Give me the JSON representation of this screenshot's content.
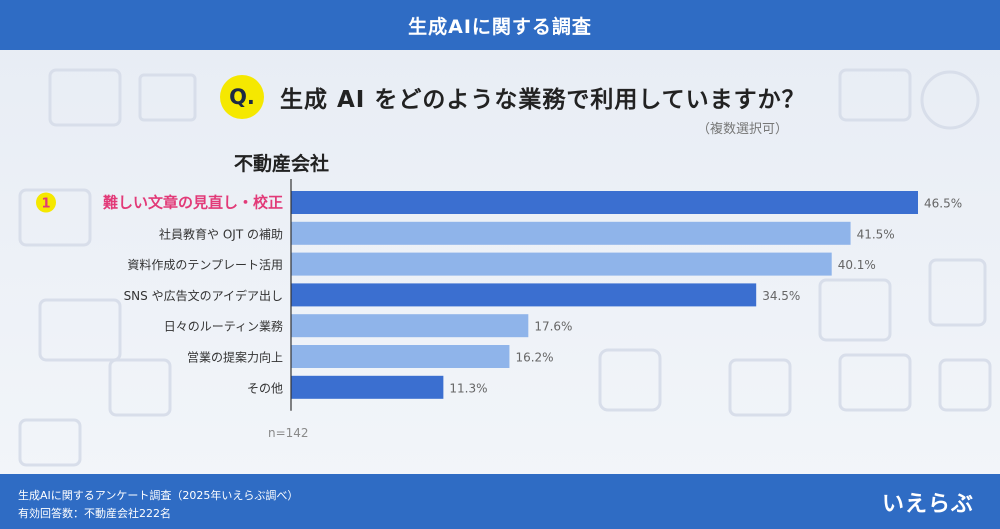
{
  "header": {
    "title": "生成AIに関する調査"
  },
  "question": {
    "badge": "Q.",
    "text": "生成 AI をどのような業務で利用していますか？",
    "note": "（複数選択可）"
  },
  "industry_label": "不動産会社",
  "sample_size": "n=142",
  "footer": {
    "line1": "生成AIに関するアンケート調査（2025年いえらぶ調べ）",
    "line2": "有効回答数：不動産会社222名",
    "logo": "いえらぶ"
  },
  "colors": {
    "header": "#2f6cc4",
    "bar_dark": "#3b6fd0",
    "bar_light": "#8fb4ea",
    "highlight_text": "#e23a78",
    "badge": "#f5e800"
  },
  "chart_data": {
    "type": "bar",
    "orientation": "horizontal",
    "categories": [
      "難しい文章の見直し・校正",
      "社員教育や OJT の補助",
      "資料作成のテンプレート活用",
      "SNS や広告文のアイデア出し",
      "日々のルーティン業務",
      "営業の提案力向上",
      "その他"
    ],
    "values": [
      46.5,
      41.5,
      40.1,
      34.5,
      17.6,
      16.2,
      11.3
    ],
    "value_labels": [
      "46.5%",
      "41.5%",
      "40.1%",
      "34.5%",
      "17.6%",
      "16.2%",
      "11.3%"
    ],
    "bar_shades": [
      "dark",
      "light",
      "light",
      "dark",
      "light",
      "light",
      "dark"
    ],
    "highlight": {
      "rank": "1",
      "index": 0
    },
    "xlim": [
      0,
      50
    ],
    "grid": false,
    "unit": "%"
  }
}
